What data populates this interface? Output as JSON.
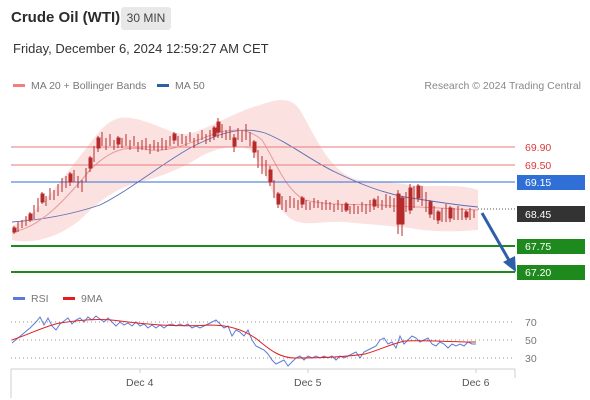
{
  "header": {
    "title": "Crude Oil (WTI)",
    "interval": "30 MIN",
    "datetime": "Friday, December 6, 2024 12:59:27 AM CET"
  },
  "legend": {
    "items": [
      {
        "label": "MA 20 + Bollinger Bands",
        "color": "#f08080"
      },
      {
        "label": "MA 50",
        "color": "#2f5ea8"
      }
    ],
    "copyright": "Research © 2024 Trading Central"
  },
  "colors": {
    "resistance": "#e87b7b",
    "pivot": "#2f6fd6",
    "support": "#1e8a1e",
    "current": "#333333",
    "arrow": "#2f5ea8",
    "candle": "#b52b2b"
  },
  "levels": {
    "r2": "69.90",
    "r1": "69.50",
    "pivot": "69.15",
    "current": "68.45",
    "s1": "67.75",
    "s2": "67.20"
  },
  "rsi_legend": {
    "items": [
      {
        "label": "RSI",
        "color": "#5b7bd6"
      },
      {
        "label": "9MA",
        "color": "#e02020"
      }
    ]
  },
  "rsi_axis": [
    "70",
    "50",
    "30"
  ],
  "x_axis": [
    "Dec 4",
    "Dec 5",
    "Dec 6"
  ]
}
